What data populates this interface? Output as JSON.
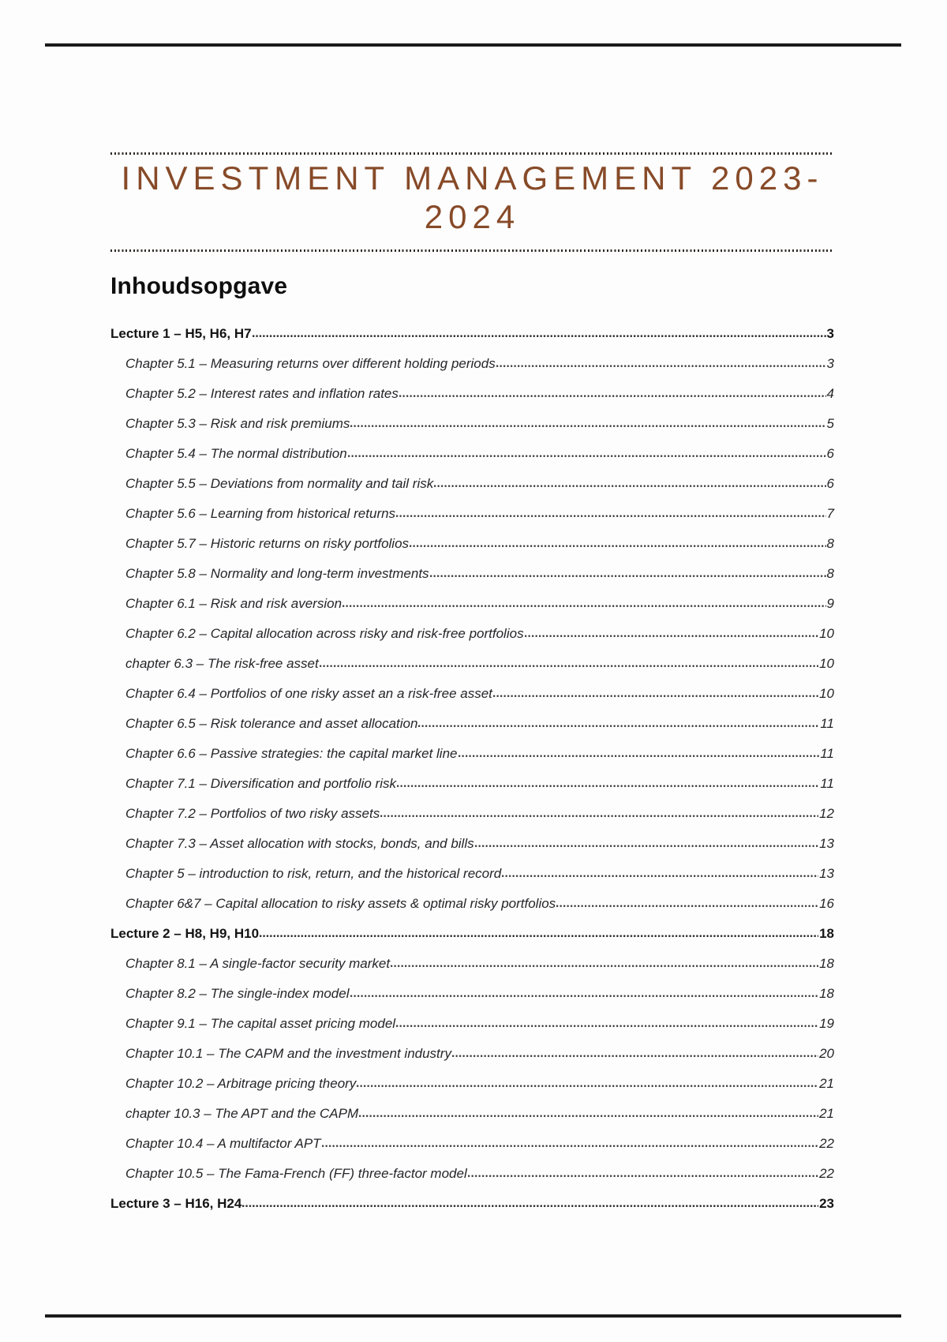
{
  "page": {
    "title_lines": [
      "INVESTMENT MANAGEMENT 2023-",
      "2024"
    ],
    "title_color": "#874a28",
    "toc_heading": "Inhoudsopgave"
  },
  "toc": {
    "sections": [
      {
        "title": "Lecture 1 – H5, H6, H7",
        "page": "3",
        "items": [
          {
            "label": "Chapter 5.1 – Measuring returns over different holding periods",
            "page": "3"
          },
          {
            "label": "Chapter 5.2 – Interest rates and inflation rates",
            "page": "4"
          },
          {
            "label": "Chapter 5.3 – Risk and risk premiums",
            "page": "5"
          },
          {
            "label": "Chapter 5.4 – The normal distribution",
            "page": "6"
          },
          {
            "label": "Chapter 5.5 – Deviations from normality and tail risk",
            "page": "6"
          },
          {
            "label": "Chapter 5.6 – Learning from historical returns",
            "page": "7"
          },
          {
            "label": "Chapter 5.7 – Historic returns on risky portfolios",
            "page": "8"
          },
          {
            "label": "Chapter 5.8 – Normality and long-term investments",
            "page": "8"
          },
          {
            "label": "Chapter 6.1 – Risk and risk aversion",
            "page": "9"
          },
          {
            "label": "Chapter 6.2 – Capital allocation across risky and risk-free portfolios",
            "page": "10"
          },
          {
            "label": "chapter 6.3 – The risk-free asset",
            "page": "10"
          },
          {
            "label": "Chapter 6.4 – Portfolios of one risky asset an a risk-free asset",
            "page": "10"
          },
          {
            "label": "Chapter 6.5 – Risk tolerance and asset allocation",
            "page": "11"
          },
          {
            "label": "Chapter 6.6 – Passive strategies: the capital market line",
            "page": "11"
          },
          {
            "label": "Chapter 7.1 – Diversification and portfolio risk",
            "page": "11"
          },
          {
            "label": "Chapter 7.2 – Portfolios of two risky assets",
            "page": "12"
          },
          {
            "label": "Chapter 7.3 – Asset allocation with stocks, bonds, and bills",
            "page": "13"
          },
          {
            "label": "Chapter 5 – introduction to risk, return, and the historical record",
            "page": "13"
          },
          {
            "label": "Chapter 6&7 – Capital allocation to risky assets & optimal risky portfolios",
            "page": "16"
          }
        ]
      },
      {
        "title": "Lecture 2 – H8, H9, H10",
        "page": "18",
        "items": [
          {
            "label": "Chapter 8.1 – A single-factor security market",
            "page": "18"
          },
          {
            "label": "Chapter 8.2 – The single-index model",
            "page": "18"
          },
          {
            "label": "Chapter 9.1 – The capital asset pricing model",
            "page": "19"
          },
          {
            "label": "Chapter 10.1 – The CAPM and the investment industry",
            "page": "20"
          },
          {
            "label": "Chapter 10.2 – Arbitrage pricing theory",
            "page": "21"
          },
          {
            "label": "chapter 10.3 – The APT and the CAPM",
            "page": "21"
          },
          {
            "label": "Chapter 10.4 – A multifactor APT",
            "page": "22"
          },
          {
            "label": "Chapter 10.5 – The Fama-French (FF) three-factor model",
            "page": "22"
          }
        ]
      },
      {
        "title": "Lecture 3 – H16, H24",
        "page": "23",
        "items": []
      }
    ]
  }
}
